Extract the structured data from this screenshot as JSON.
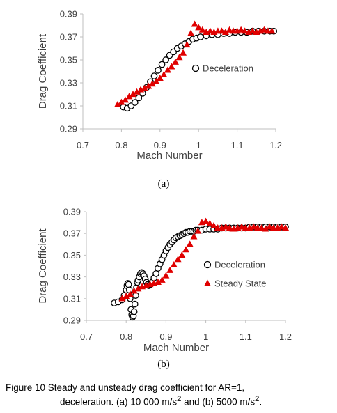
{
  "chart_data": [
    {
      "type": "scatter",
      "panel_label": "(a)",
      "xlabel": "Mach Number",
      "ylabel": "Drag Coefficient",
      "xlim": [
        0.7,
        1.2
      ],
      "ylim": [
        0.29,
        0.39
      ],
      "xticks": [
        "0.7",
        "0.8",
        "0.9",
        "1",
        "1.1",
        "1.2"
      ],
      "yticks": [
        "0.29",
        "0.31",
        "0.33",
        "0.35",
        "0.37",
        "0.39"
      ],
      "legend_position": "right-middle",
      "series": [
        {
          "name": "Deceleration",
          "marker": "open-circle",
          "color": "#000000",
          "x": [
            0.805,
            0.815,
            0.825,
            0.835,
            0.845,
            0.855,
            0.865,
            0.875,
            0.885,
            0.895,
            0.905,
            0.915,
            0.925,
            0.935,
            0.945,
            0.955,
            0.965,
            0.975,
            0.985,
            0.995,
            1.005,
            1.02,
            1.035,
            1.05,
            1.065,
            1.08,
            1.095,
            1.11,
            1.125,
            1.14,
            1.155,
            1.17,
            1.185,
            1.195
          ],
          "y": [
            0.309,
            0.308,
            0.31,
            0.313,
            0.317,
            0.321,
            0.326,
            0.331,
            0.336,
            0.341,
            0.346,
            0.35,
            0.354,
            0.357,
            0.36,
            0.362,
            0.364,
            0.366,
            0.368,
            0.369,
            0.37,
            0.371,
            0.372,
            0.372,
            0.373,
            0.373,
            0.374,
            0.374,
            0.374,
            0.375,
            0.375,
            0.375,
            0.375,
            0.375
          ]
        },
        {
          "name": "",
          "marker": "filled-triangle",
          "color": "#e00000",
          "x": [
            0.79,
            0.8,
            0.81,
            0.82,
            0.83,
            0.84,
            0.85,
            0.86,
            0.87,
            0.88,
            0.89,
            0.9,
            0.91,
            0.92,
            0.93,
            0.94,
            0.95,
            0.96,
            0.97,
            0.98,
            0.99,
            1.0,
            1.01,
            1.02,
            1.03,
            1.04,
            1.05,
            1.06,
            1.07,
            1.08,
            1.09,
            1.1,
            1.11,
            1.12,
            1.13,
            1.14,
            1.15,
            1.16,
            1.17,
            1.18,
            1.19
          ],
          "y": [
            0.311,
            0.313,
            0.315,
            0.318,
            0.32,
            0.322,
            0.324,
            0.325,
            0.327,
            0.329,
            0.331,
            0.334,
            0.337,
            0.341,
            0.344,
            0.348,
            0.352,
            0.356,
            0.363,
            0.373,
            0.381,
            0.378,
            0.376,
            0.374,
            0.375,
            0.374,
            0.375,
            0.375,
            0.374,
            0.376,
            0.375,
            0.375,
            0.376,
            0.375,
            0.374,
            0.375,
            0.374,
            0.375,
            0.376,
            0.375,
            0.375
          ]
        }
      ]
    },
    {
      "type": "scatter",
      "panel_label": "(b)",
      "xlabel": "Mach Number",
      "ylabel": "Drag Coefficient",
      "xlim": [
        0.7,
        1.2
      ],
      "ylim": [
        0.29,
        0.39
      ],
      "xticks": [
        "0.7",
        "0.8",
        "0.9",
        "1",
        "1.1",
        "1.2"
      ],
      "yticks": [
        "0.29",
        "0.31",
        "0.33",
        "0.35",
        "0.37",
        "0.39"
      ],
      "legend_position": "right-middle",
      "series": [
        {
          "name": "Deceleration",
          "marker": "open-circle",
          "color": "#000000",
          "x": [
            0.77,
            0.78,
            0.79,
            0.795,
            0.8,
            0.802,
            0.804,
            0.806,
            0.808,
            0.81,
            0.812,
            0.814,
            0.816,
            0.818,
            0.82,
            0.822,
            0.824,
            0.826,
            0.828,
            0.83,
            0.833,
            0.836,
            0.839,
            0.842,
            0.845,
            0.848,
            0.851,
            0.854,
            0.857,
            0.86,
            0.865,
            0.87,
            0.875,
            0.88,
            0.885,
            0.89,
            0.895,
            0.9,
            0.905,
            0.91,
            0.915,
            0.92,
            0.925,
            0.93,
            0.935,
            0.94,
            0.945,
            0.95,
            0.955,
            0.96,
            0.965,
            0.97,
            0.975,
            0.98,
            0.99,
            1.0,
            1.01,
            1.02,
            1.03,
            1.04,
            1.05,
            1.06,
            1.07,
            1.08,
            1.09,
            1.1,
            1.11,
            1.12,
            1.13,
            1.14,
            1.15,
            1.16,
            1.17,
            1.18,
            1.19,
            1.2
          ],
          "y": [
            0.306,
            0.307,
            0.309,
            0.313,
            0.318,
            0.322,
            0.324,
            0.323,
            0.318,
            0.31,
            0.3,
            0.295,
            0.293,
            0.294,
            0.298,
            0.305,
            0.313,
            0.32,
            0.325,
            0.327,
            0.33,
            0.333,
            0.334,
            0.333,
            0.331,
            0.328,
            0.325,
            0.323,
            0.322,
            0.323,
            0.325,
            0.329,
            0.333,
            0.338,
            0.342,
            0.346,
            0.35,
            0.354,
            0.357,
            0.36,
            0.362,
            0.364,
            0.366,
            0.367,
            0.368,
            0.369,
            0.37,
            0.371,
            0.371,
            0.372,
            0.372,
            0.372,
            0.373,
            0.373,
            0.373,
            0.374,
            0.374,
            0.374,
            0.374,
            0.375,
            0.375,
            0.375,
            0.375,
            0.375,
            0.375,
            0.375,
            0.376,
            0.376,
            0.376,
            0.376,
            0.376,
            0.376,
            0.376,
            0.376,
            0.376,
            0.376
          ]
        },
        {
          "name": "Steady State",
          "marker": "filled-triangle",
          "color": "#e00000",
          "x": [
            0.79,
            0.8,
            0.81,
            0.82,
            0.83,
            0.84,
            0.85,
            0.86,
            0.87,
            0.88,
            0.89,
            0.9,
            0.91,
            0.92,
            0.93,
            0.94,
            0.95,
            0.96,
            0.97,
            0.98,
            0.99,
            1.0,
            1.01,
            1.02,
            1.03,
            1.04,
            1.05,
            1.06,
            1.07,
            1.08,
            1.09,
            1.1,
            1.11,
            1.12,
            1.13,
            1.14,
            1.15,
            1.16,
            1.17,
            1.18,
            1.19,
            1.2
          ],
          "y": [
            0.31,
            0.312,
            0.314,
            0.317,
            0.319,
            0.321,
            0.322,
            0.323,
            0.324,
            0.325,
            0.327,
            0.331,
            0.336,
            0.341,
            0.346,
            0.35,
            0.355,
            0.36,
            0.367,
            0.372,
            0.38,
            0.381,
            0.379,
            0.377,
            0.375,
            0.375,
            0.376,
            0.375,
            0.374,
            0.375,
            0.376,
            0.375,
            0.375,
            0.376,
            0.375,
            0.375,
            0.374,
            0.376,
            0.375,
            0.375,
            0.376,
            0.375
          ]
        }
      ]
    }
  ],
  "caption": {
    "line1": "Figure 10  Steady and unsteady drag coefficient for AR=1,",
    "line2_a": "deceleration. (a) 10 000 m/s",
    "line2_sup1": "2",
    "line2_b": " and (b) 5000 m/s",
    "line2_sup2": "2",
    "line2_c": "."
  }
}
